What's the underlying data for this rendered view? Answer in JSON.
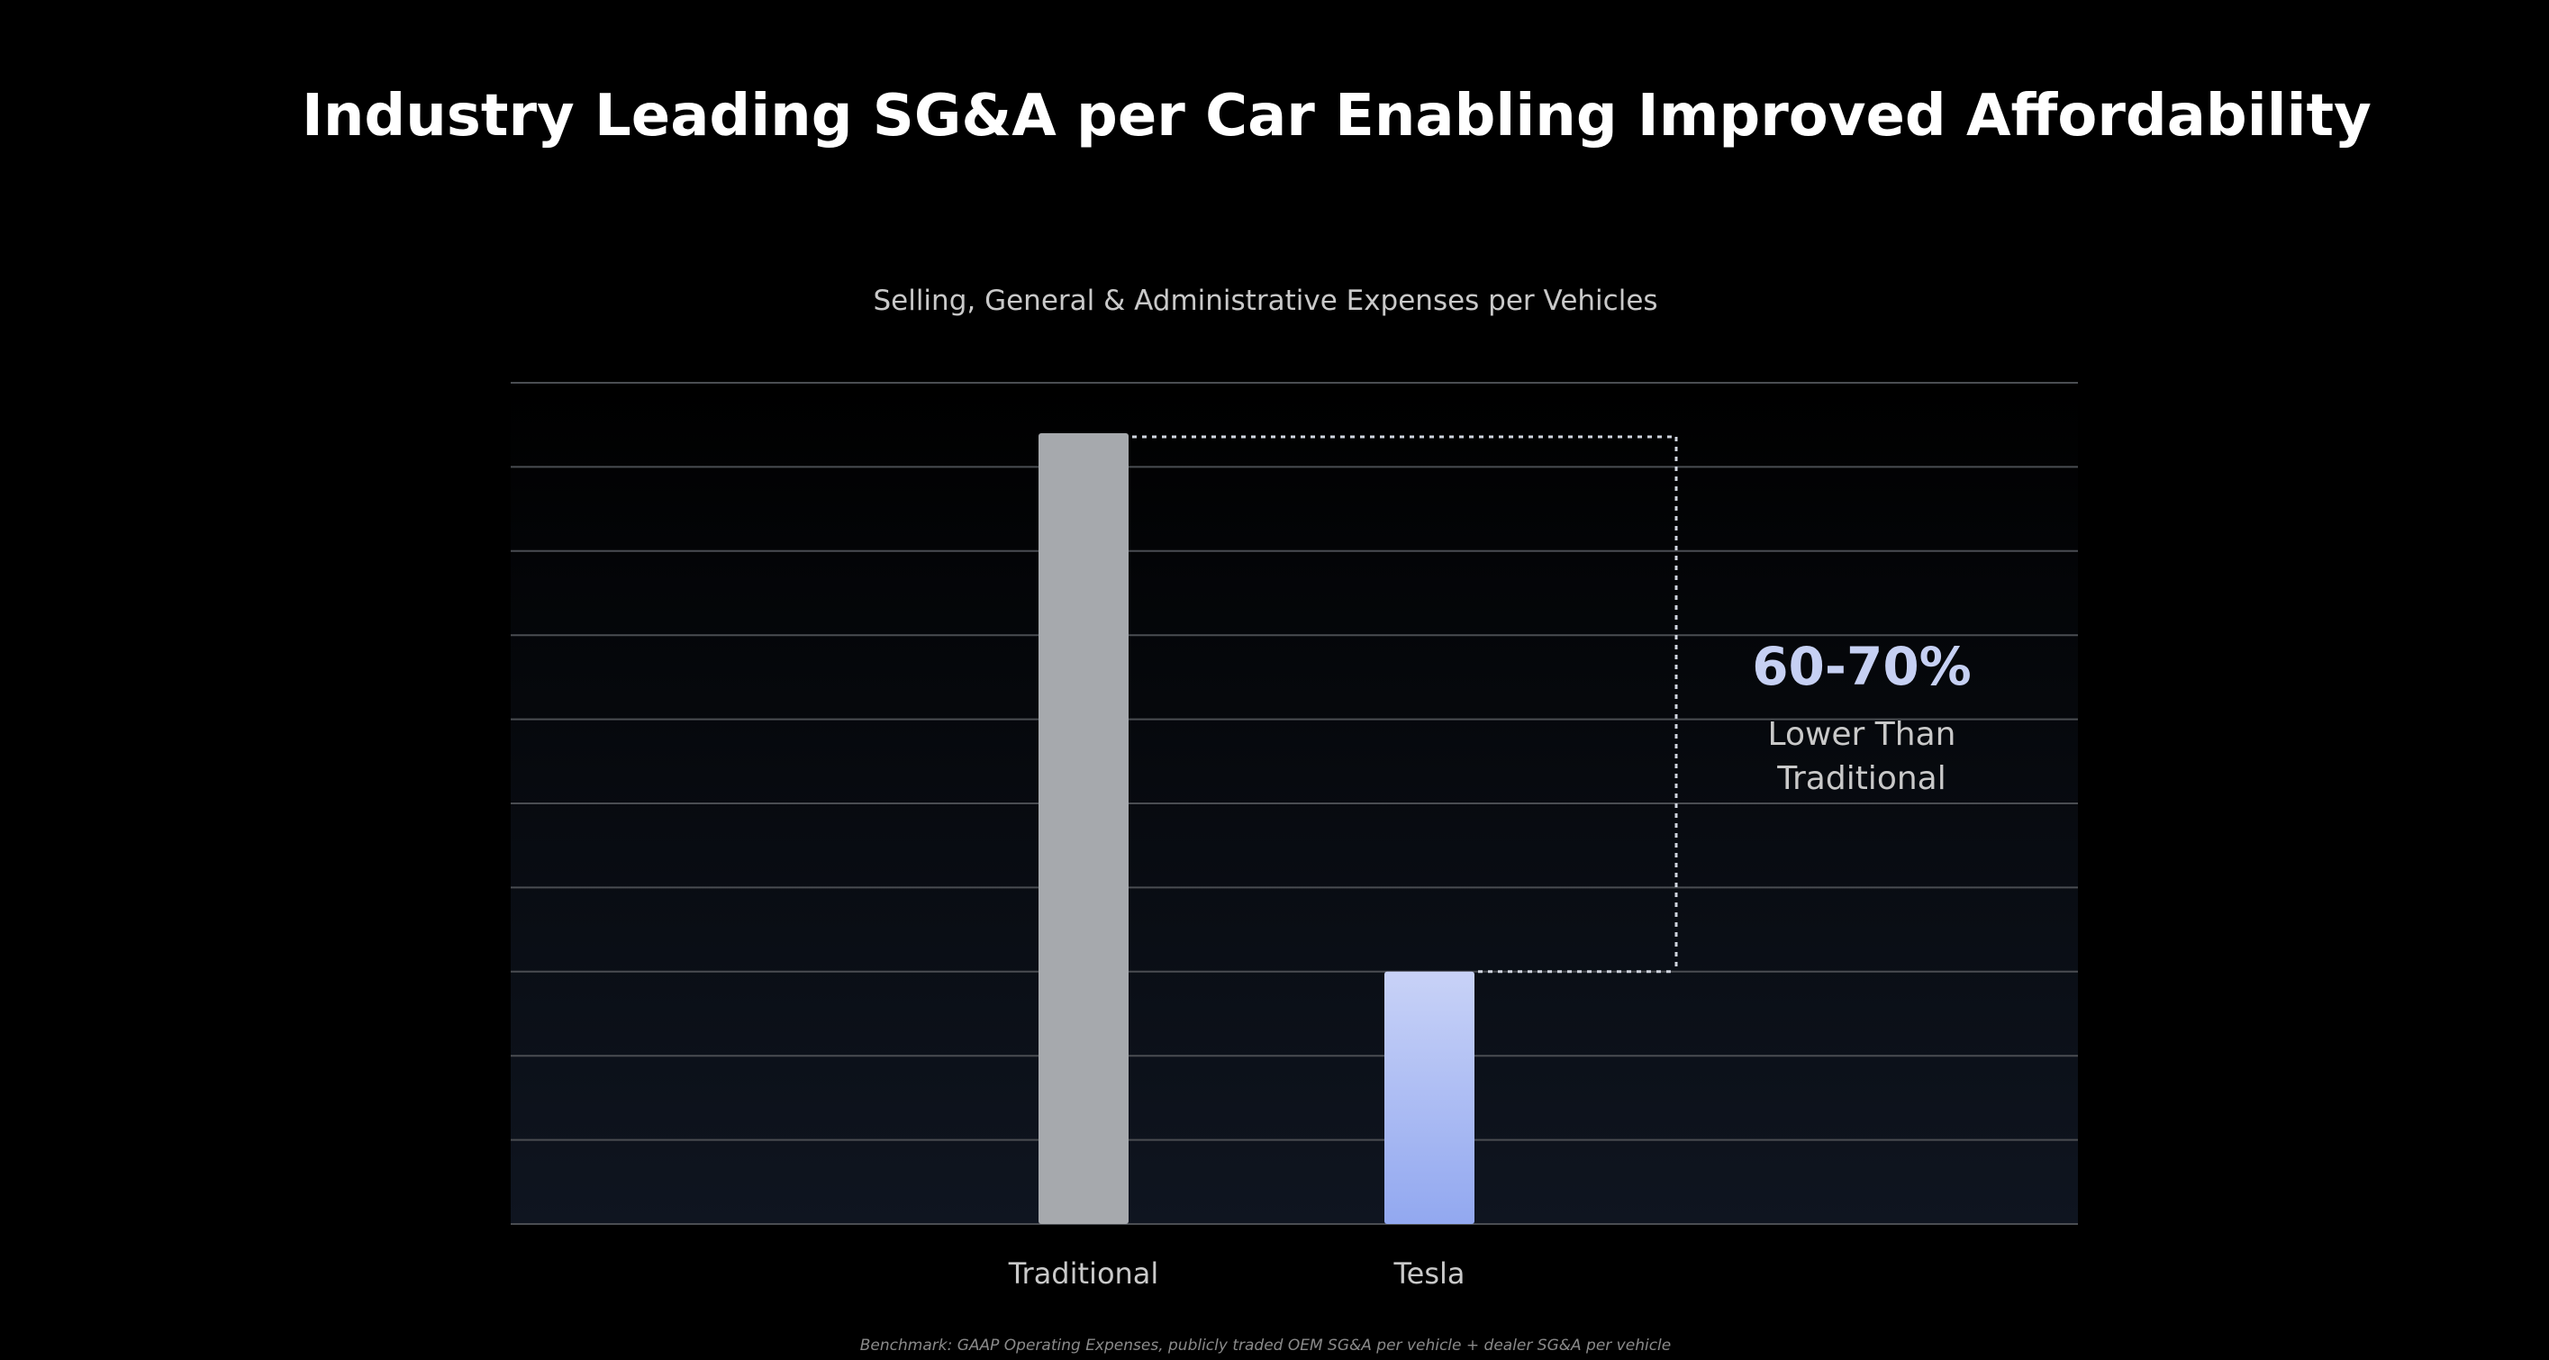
{
  "slide": {
    "title": "Industry Leading SG&A per Car Enabling Improved Affordability",
    "footnote": "Benchmark: GAAP Operating Expenses, publicly traded OEM SG&A per vehicle + dealer SG&A per vehicle"
  },
  "chart_data": {
    "type": "bar",
    "title": "Selling, General & Administrative Expenses per Vehicles",
    "categories": [
      "Traditional",
      "Tesla"
    ],
    "values": [
      94,
      30
    ],
    "ylim": [
      0,
      100
    ],
    "ylabel": "",
    "xlabel": "",
    "grid": true,
    "gridlines": 10,
    "y_tick_labels_shown": false,
    "colors": {
      "Traditional": "#a6a9ad",
      "Tesla_top": "#c8d2f7",
      "Tesla_bottom": "#92a8f0",
      "grid": "#4a4d52",
      "annotation_value": "#c6d0f3",
      "annotation_text": "#c9c9c9"
    },
    "annotation": {
      "value": "60-70%",
      "text_line1": "Lower Than",
      "text_line2": "Traditional"
    }
  }
}
